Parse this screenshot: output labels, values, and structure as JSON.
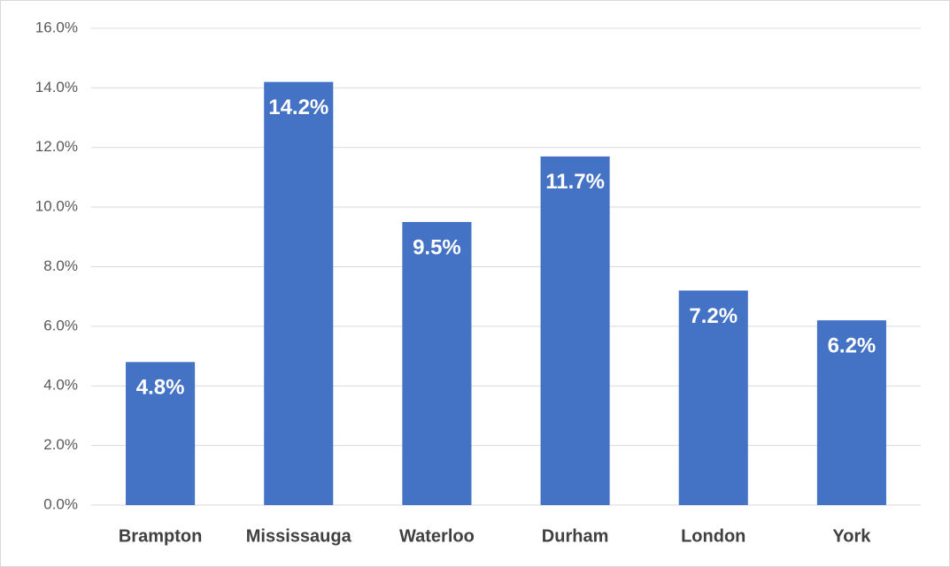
{
  "chart_data": {
    "type": "bar",
    "categories": [
      "Brampton",
      "Mississauga",
      "Waterloo",
      "Durham",
      "London",
      "York"
    ],
    "values": [
      4.8,
      14.2,
      9.5,
      11.7,
      7.2,
      6.2
    ],
    "value_labels": [
      "4.8%",
      "14.2%",
      "9.5%",
      "11.7%",
      "7.2%",
      "6.2%"
    ],
    "color": "#4472c4",
    "ylim": [
      0,
      16
    ],
    "yticks": [
      {
        "value": 0,
        "label": "0.0%"
      },
      {
        "value": 2,
        "label": "2.0%"
      },
      {
        "value": 4,
        "label": "4.0%"
      },
      {
        "value": 6,
        "label": "6.0%"
      },
      {
        "value": 8,
        "label": "8.0%"
      },
      {
        "value": 10,
        "label": "10.0%"
      },
      {
        "value": 12,
        "label": "12.0%"
      },
      {
        "value": 14,
        "label": "14.0%"
      },
      {
        "value": 16,
        "label": "16.0%"
      }
    ],
    "grid": true
  }
}
